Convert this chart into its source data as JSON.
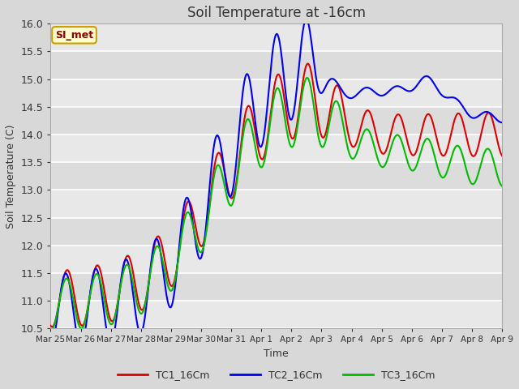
{
  "title": "Soil Temperature at -16cm",
  "xlabel": "Time",
  "ylabel": "Soil Temperature (C)",
  "ylim": [
    10.5,
    16.0
  ],
  "legend_label": "SI_met",
  "legend_text_color": "#8b0000",
  "legend_bg": "#ffffcc",
  "legend_border": "#c8a000",
  "line_colors": {
    "TC1_16Cm": "#dd0000",
    "TC2_16Cm": "#0000ee",
    "TC3_16Cm": "#00bb00"
  },
  "x_tick_labels": [
    "Mar 25",
    "Mar 26",
    "Mar 27",
    "Mar 28",
    "Mar 29",
    "Mar 30",
    "Mar 31",
    "Apr 1",
    "Apr 2",
    "Apr 3",
    "Apr 4",
    "Apr 5",
    "Apr 6",
    "Apr 7",
    "Apr 8",
    "Apr 9"
  ],
  "yticks": [
    10.5,
    11.0,
    11.5,
    12.0,
    12.5,
    13.0,
    13.5,
    14.0,
    14.5,
    15.0,
    15.5,
    16.0
  ],
  "fig_width": 6.4,
  "fig_height": 4.8,
  "dpi": 100
}
